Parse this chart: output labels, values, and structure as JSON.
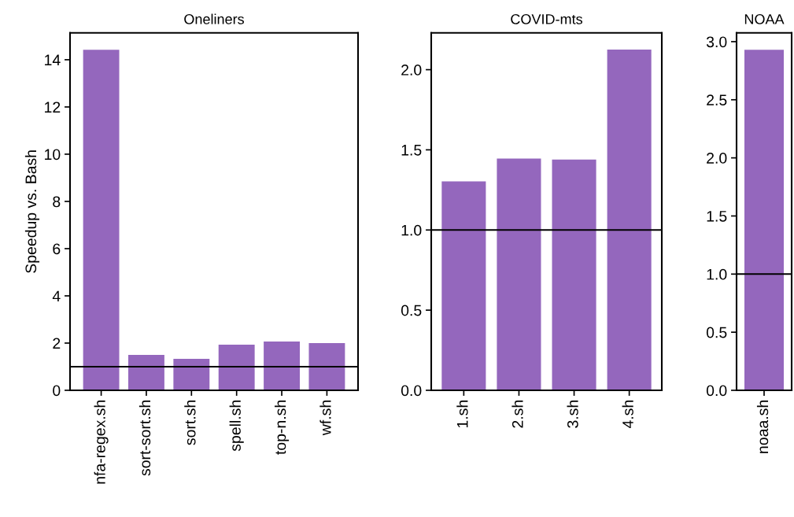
{
  "chart_data": [
    {
      "type": "bar",
      "title": "Oneliners",
      "ylabel": "Speedup vs. Bash",
      "categories": [
        "nfa-regex.sh",
        "sort-sort.sh",
        "sort.sh",
        "spell.sh",
        "top-n.sh",
        "wf.sh"
      ],
      "values": [
        14.42,
        1.5,
        1.33,
        1.93,
        2.07,
        2.0
      ],
      "color": "#9467bd",
      "ylim": [
        0,
        15.14
      ],
      "yticks": [
        0,
        2,
        4,
        6,
        8,
        10,
        12,
        14
      ],
      "ref_lines": [
        {
          "axis": "y",
          "value": 1,
          "color": "#000000"
        }
      ]
    },
    {
      "type": "bar",
      "title": "COVID-mts",
      "categories": [
        "1.sh",
        "2.sh",
        "3.sh",
        "4.sh"
      ],
      "values": [
        1.303,
        1.445,
        1.44,
        2.125
      ],
      "color": "#9467bd",
      "ylim": [
        0,
        2.23
      ],
      "yticks": [
        {
          "value": 0,
          "label": "0.0"
        },
        {
          "value": 0.5,
          "label": "0.5"
        },
        {
          "value": 1,
          "label": "1.0"
        },
        {
          "value": 1.5,
          "label": "1.5"
        },
        {
          "value": 2,
          "label": "2.0"
        }
      ],
      "ref_lines": [
        {
          "axis": "y",
          "value": 1,
          "color": "#000000"
        }
      ]
    },
    {
      "type": "bar",
      "title": "NOAA",
      "categories": [
        "noaa.sh"
      ],
      "values": [
        2.93
      ],
      "color": "#9467bd",
      "ylim": [
        0,
        3.076
      ],
      "yticks": [
        {
          "value": 0,
          "label": "0.0"
        },
        {
          "value": 0.5,
          "label": "0.5"
        },
        {
          "value": 1,
          "label": "1.0"
        },
        {
          "value": 1.5,
          "label": "1.5"
        },
        {
          "value": 2,
          "label": "2.0"
        },
        {
          "value": 2.5,
          "label": "2.5"
        },
        {
          "value": 3,
          "label": "3.0"
        }
      ],
      "ref_lines": [
        {
          "axis": "y",
          "value": 1,
          "color": "#000000"
        }
      ]
    }
  ]
}
